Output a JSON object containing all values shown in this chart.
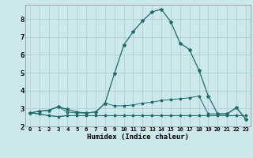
{
  "title": "",
  "xlabel": "Humidex (Indice chaleur)",
  "bg_color": "#cce8ec",
  "grid_color": "#aacccc",
  "line_color": "#1a6e6a",
  "xlim": [
    -0.5,
    23.5
  ],
  "ylim": [
    2.0,
    8.8
  ],
  "yticks": [
    2,
    3,
    4,
    5,
    6,
    7,
    8
  ],
  "xticks": [
    0,
    1,
    2,
    3,
    4,
    5,
    6,
    7,
    8,
    9,
    10,
    11,
    12,
    13,
    14,
    15,
    16,
    17,
    18,
    19,
    20,
    21,
    22,
    23
  ],
  "line_peak_x": [
    0,
    1,
    2,
    3,
    4,
    5,
    6,
    7,
    8,
    9,
    10,
    11,
    12,
    13,
    14,
    15,
    16,
    17,
    18,
    19,
    20,
    21,
    22,
    23
  ],
  "line_peak_y": [
    2.75,
    2.85,
    2.9,
    3.1,
    2.95,
    2.8,
    2.75,
    2.8,
    3.3,
    4.95,
    6.55,
    7.3,
    7.9,
    8.4,
    8.55,
    7.85,
    6.65,
    6.3,
    5.15,
    3.7,
    2.7,
    2.7,
    3.05,
    2.4
  ],
  "line_mid_x": [
    0,
    1,
    2,
    3,
    4,
    5,
    6,
    7,
    8,
    9,
    10,
    11,
    12,
    13,
    14,
    15,
    16,
    17,
    18,
    19,
    20,
    21,
    22,
    23
  ],
  "line_mid_y": [
    2.75,
    2.85,
    2.9,
    3.1,
    2.8,
    2.75,
    2.75,
    2.8,
    3.3,
    3.15,
    3.15,
    3.2,
    3.3,
    3.35,
    3.45,
    3.5,
    3.55,
    3.6,
    3.7,
    2.7,
    2.7,
    2.7,
    3.05,
    2.4
  ],
  "line_flat1_x": [
    0,
    1,
    2,
    3,
    4,
    5,
    6,
    7,
    8,
    9,
    10,
    11,
    12,
    13,
    14,
    15,
    16,
    17,
    18,
    19,
    20,
    21,
    22,
    23
  ],
  "line_flat1_y": [
    2.75,
    2.7,
    2.6,
    2.55,
    2.6,
    2.6,
    2.6,
    2.6,
    2.6,
    2.6,
    2.6,
    2.6,
    2.6,
    2.6,
    2.6,
    2.6,
    2.6,
    2.6,
    2.6,
    2.6,
    2.6,
    2.6,
    2.6,
    2.6
  ],
  "line_flat2_x": [
    0,
    1,
    2,
    3,
    4,
    5,
    6,
    7,
    8,
    9,
    10,
    11,
    12,
    13,
    14,
    15,
    16,
    17,
    18,
    19,
    20,
    21,
    22,
    23
  ],
  "line_flat2_y": [
    2.75,
    2.7,
    2.6,
    2.55,
    2.6,
    2.6,
    2.6,
    2.6,
    2.6,
    2.6,
    2.6,
    2.6,
    2.6,
    2.6,
    2.6,
    2.6,
    2.6,
    2.6,
    2.6,
    2.6,
    2.6,
    2.6,
    2.6,
    2.6
  ]
}
